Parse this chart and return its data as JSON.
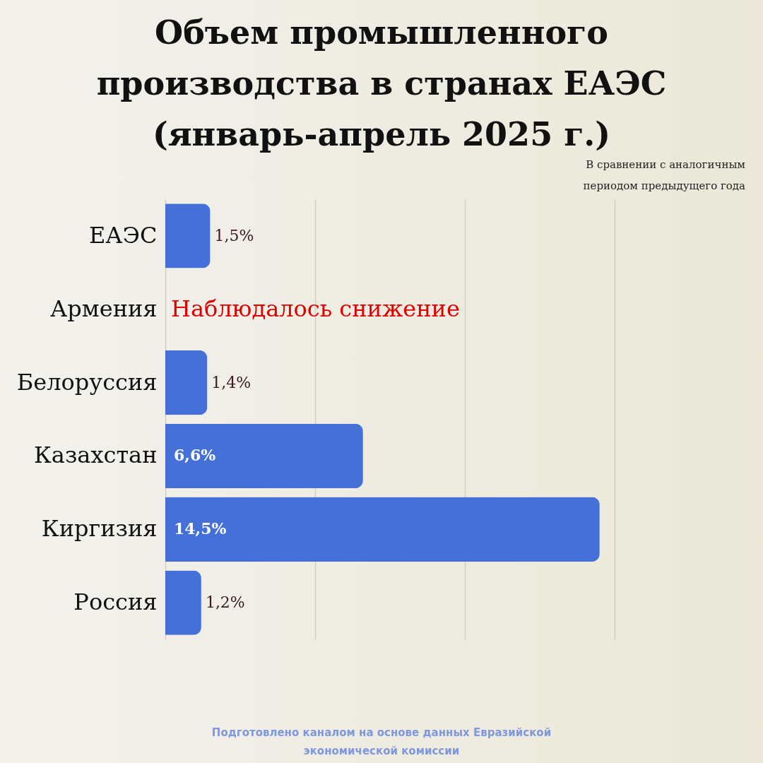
{
  "chart_data": {
    "type": "bar",
    "orientation": "horizontal",
    "title": "Объем промышленного производства в странах ЕАЭС (январь-апрель 2025 г.)",
    "subtitle": "В сравнении с аналогичным периодом предыдущего года",
    "categories": [
      "ЕАЭС",
      "Армения",
      "Белоруссия",
      "Казахстан",
      "Киргизия",
      "Россия"
    ],
    "values": [
      1.5,
      null,
      1.4,
      6.6,
      14.5,
      1.2
    ],
    "value_labels": [
      "1,5%",
      null,
      "1,4%",
      "6,6%",
      "14,5%",
      "1,2%"
    ],
    "color": "#4470d8",
    "xlim": [
      0,
      15
    ],
    "xticks": [
      {
        "value": 0,
        "label": null
      },
      {
        "value": 5,
        "label": null
      },
      {
        "value": 10,
        "label": null
      },
      {
        "value": 15,
        "label": null
      }
    ],
    "grid": "x",
    "tick_labels": "y",
    "annotations": [
      "Наблюдалось снижение",
      "Подготовлено каналом на основе данных Евразийской экономической комиссии"
    ]
  }
}
